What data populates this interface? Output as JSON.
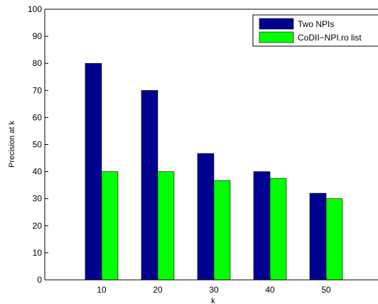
{
  "chart_data": {
    "type": "bar",
    "xlabel": "k",
    "ylabel": "Precision at k",
    "ylim": [
      0,
      100
    ],
    "yticks": [
      "0",
      "10",
      "20",
      "30",
      "40",
      "50",
      "60",
      "70",
      "80",
      "90",
      "100"
    ],
    "categories": [
      "10",
      "20",
      "30",
      "40",
      "50"
    ],
    "series": [
      {
        "name": "Two NPIs",
        "values": [
          80,
          70,
          46.7,
          40,
          32
        ],
        "color": "#00008f"
      },
      {
        "name": "CoDII−NPI.ro list",
        "values": [
          40,
          40,
          36.7,
          37.5,
          30
        ],
        "color": "#00ff00"
      }
    ],
    "legend": "top-right",
    "grid": false
  }
}
